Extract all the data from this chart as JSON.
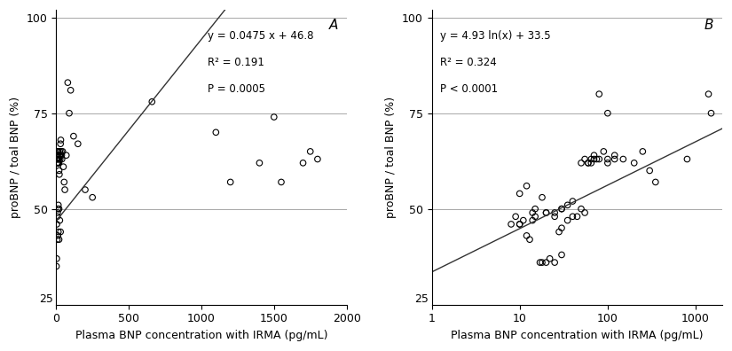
{
  "panel_A_x": [
    2,
    4,
    5,
    6,
    7,
    8,
    9,
    10,
    11,
    12,
    13,
    14,
    15,
    16,
    17,
    18,
    19,
    20,
    22,
    24,
    25,
    27,
    30,
    32,
    35,
    38,
    40,
    45,
    50,
    55,
    60,
    70,
    80,
    90,
    100,
    120,
    150,
    5,
    8,
    10,
    12,
    15,
    20,
    25,
    30,
    8,
    12,
    15,
    20,
    660,
    1100,
    1200,
    1400,
    1500,
    1550,
    1700,
    1750,
    1800,
    200,
    250
  ],
  "panel_A_y": [
    35,
    37,
    62,
    63,
    64,
    65,
    63,
    62,
    65,
    63,
    62,
    64,
    65,
    63,
    62,
    63,
    62,
    60,
    59,
    64,
    65,
    63,
    67,
    68,
    65,
    64,
    63,
    65,
    61,
    57,
    55,
    64,
    83,
    75,
    81,
    69,
    67,
    46,
    48,
    49,
    50,
    51,
    50,
    47,
    44,
    42,
    43,
    44,
    42,
    78,
    70,
    57,
    62,
    74,
    57,
    62,
    65,
    63,
    55,
    53
  ],
  "panel_B_x": [
    8,
    9,
    10,
    11,
    12,
    13,
    14,
    15,
    17,
    18,
    20,
    22,
    25,
    28,
    30,
    10,
    12,
    15,
    18,
    20,
    25,
    30,
    35,
    10,
    14,
    20,
    25,
    30,
    35,
    40,
    45,
    50,
    55,
    60,
    65,
    70,
    80,
    90,
    100,
    100,
    120,
    150,
    200,
    250,
    300,
    350,
    30,
    40,
    50,
    55,
    60,
    65,
    70,
    75,
    80,
    100,
    120,
    800,
    1400,
    1500
  ],
  "panel_B_y": [
    46,
    48,
    46,
    47,
    43,
    42,
    49,
    48,
    36,
    36,
    36,
    37,
    36,
    44,
    38,
    54,
    56,
    50,
    53,
    49,
    49,
    50,
    51,
    46,
    47,
    49,
    48,
    45,
    47,
    48,
    48,
    62,
    63,
    62,
    63,
    63,
    80,
    65,
    75,
    62,
    63,
    63,
    62,
    65,
    60,
    57,
    50,
    52,
    50,
    49,
    62,
    62,
    64,
    63,
    63,
    63,
    64,
    63,
    80,
    75
  ],
  "ylim": [
    25,
    102
  ],
  "yticks": [
    50,
    75,
    100
  ],
  "ytick_labels": [
    "50",
    "75",
    "100"
  ],
  "y_bottom_label": "25",
  "panel_A_xlim": [
    0,
    2000
  ],
  "panel_A_xticks": [
    0,
    500,
    1000,
    1500,
    2000
  ],
  "panel_B_xlim_log": [
    1,
    2000
  ],
  "panel_B_xticks_log": [
    1,
    10,
    100,
    1000
  ],
  "xlabel": "Plasma BNP concentration with IRMA (pg/mL)",
  "ylabel": "proBNP / toal BNP (%)",
  "label_A": "A",
  "label_B": "B",
  "eq_A": "y = 0.0475 x + 46.8",
  "r2_A": "R² = 0.191",
  "p_A": "P = 0.0005",
  "eq_B": "y = 4.93 ln(x) + 33.5",
  "r2_B": "R² = 0.324",
  "p_B": "P < 0.0001",
  "marker_size": 22,
  "marker_color": "none",
  "marker_edgecolor": "#000000",
  "line_color": "#333333",
  "background": "#ffffff",
  "grid_color": "#999999",
  "text_color": "#000000",
  "font_size_label": 9,
  "font_size_eq": 8.5,
  "font_size_tick": 9,
  "font_size_panel": 11
}
